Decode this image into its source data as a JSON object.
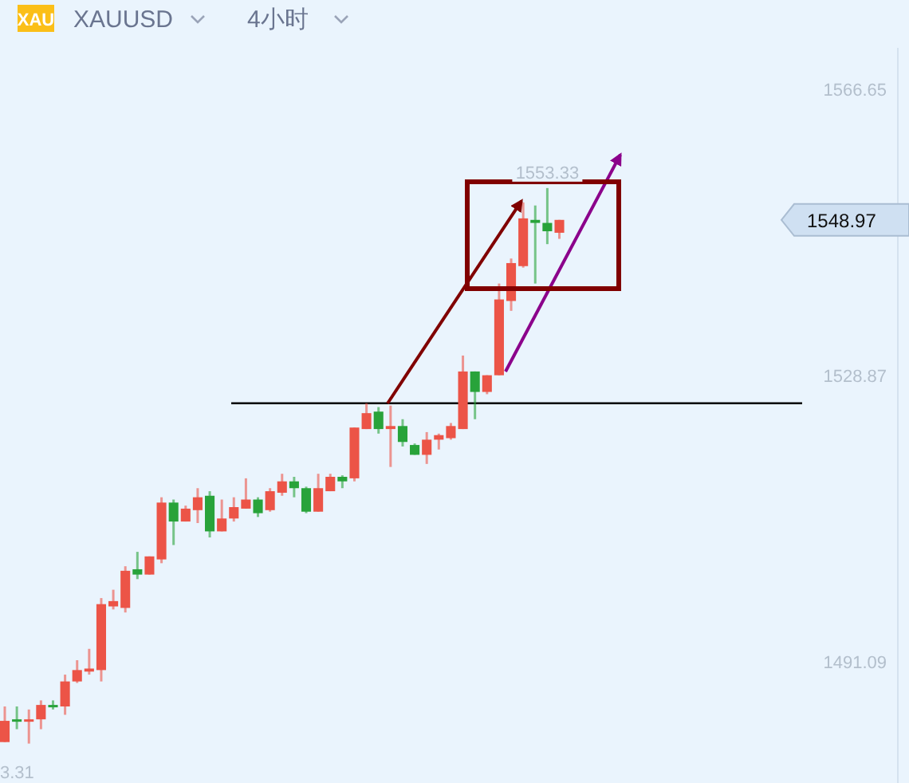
{
  "chart_data": {
    "type": "candlestick",
    "title": "XAUUSD",
    "subtitle": "4小时",
    "categories": [
      null,
      null,
      null,
      null,
      null,
      null,
      null,
      null,
      null,
      null,
      null,
      null,
      null,
      null,
      null,
      null,
      null,
      null,
      null,
      null,
      null,
      null,
      null,
      null,
      null,
      null,
      null,
      null,
      null,
      null,
      null,
      null,
      null,
      null,
      null,
      null,
      null,
      null,
      null,
      null,
      null,
      null,
      null,
      null,
      null,
      null,
      null,
      null,
      null,
      null,
      null,
      null,
      null,
      null,
      null,
      null,
      null,
      null,
      null,
      null,
      null,
      null,
      null,
      null,
      null,
      null,
      null,
      null,
      null,
      null,
      null,
      null,
      null,
      null,
      null
    ],
    "ohlc": [
      [
        1480.5,
        1485.2,
        1480.5,
        1483.3
      ],
      [
        1483.5,
        1485.2,
        1482.2,
        1483.3
      ],
      [
        1483.3,
        1484.8,
        1480.3,
        1483.5
      ],
      [
        1483.5,
        1486.0,
        1482.2,
        1485.4
      ],
      [
        1485.4,
        1486.0,
        1484.8,
        1485.2
      ],
      [
        1485.2,
        1489.4,
        1484.1,
        1488.5
      ],
      [
        1488.5,
        1491.3,
        1488.3,
        1490.0
      ],
      [
        1489.8,
        1492.8,
        1489.4,
        1490.2
      ],
      [
        1490.0,
        1499.5,
        1488.5,
        1498.7
      ],
      [
        1498.4,
        1500.6,
        1498.0,
        1499.1
      ],
      [
        1498.2,
        1503.7,
        1497.6,
        1503.1
      ],
      [
        1503.3,
        1505.6,
        1502.0,
        1502.6
      ],
      [
        1502.6,
        1505.0,
        1502.6,
        1505.0
      ],
      [
        1504.6,
        1512.8,
        1504.1,
        1512.1
      ],
      [
        1512.1,
        1512.5,
        1506.5,
        1509.6
      ],
      [
        1509.6,
        1511.7,
        1509.6,
        1511.3
      ],
      [
        1511.1,
        1514.0,
        1509.4,
        1512.8
      ],
      [
        1513.0,
        1513.6,
        1507.5,
        1508.3
      ],
      [
        1508.3,
        1512.5,
        1508.3,
        1510.0
      ],
      [
        1510.0,
        1512.8,
        1509.6,
        1511.5
      ],
      [
        1511.3,
        1515.3,
        1511.3,
        1512.5
      ],
      [
        1512.5,
        1512.8,
        1510.2,
        1510.7
      ],
      [
        1511.1,
        1514.0,
        1510.9,
        1513.6
      ],
      [
        1513.4,
        1515.9,
        1513.0,
        1514.9
      ],
      [
        1514.9,
        1515.5,
        1512.8,
        1514.0
      ],
      [
        1514.0,
        1514.2,
        1510.7,
        1510.9
      ],
      [
        1510.9,
        1515.9,
        1510.9,
        1514.0
      ],
      [
        1513.6,
        1515.9,
        1513.6,
        1515.5
      ],
      [
        1515.5,
        1515.7,
        1514.0,
        1514.9
      ],
      [
        1515.3,
        1522.0,
        1514.9,
        1522.0
      ],
      [
        1521.8,
        1525.2,
        1521.8,
        1523.9
      ],
      [
        1524.1,
        1524.7,
        1521.2,
        1521.8
      ],
      [
        1521.8,
        1524.9,
        1516.8,
        1522.2
      ],
      [
        1522.2,
        1523.1,
        1519.5,
        1520.1
      ],
      [
        1519.7,
        1519.9,
        1518.4,
        1518.4
      ],
      [
        1518.4,
        1521.4,
        1517.2,
        1520.4
      ],
      [
        1520.4,
        1521.2,
        1519.1,
        1521.0
      ],
      [
        1520.6,
        1522.6,
        1520.4,
        1522.2
      ],
      [
        1521.8,
        1531.5,
        1521.8,
        1529.4
      ],
      [
        1529.4,
        1529.4,
        1523.1,
        1526.7
      ],
      [
        1526.7,
        1528.9,
        1526.4,
        1528.9
      ],
      [
        1528.9,
        1541.0,
        1528.9,
        1538.9
      ],
      [
        1538.7,
        1544.3,
        1537.4,
        1543.7
      ],
      [
        1543.3,
        1551.7,
        1543.1,
        1549.6
      ],
      [
        1549.4,
        1551.3,
        1541.0,
        1549.0
      ],
      [
        1549.0,
        1553.6,
        1546.2,
        1547.9
      ],
      [
        1547.7,
        1549.4,
        1546.9,
        1549.4
      ],
      null,
      null,
      null,
      null,
      null,
      null,
      null,
      null,
      null,
      null,
      null,
      null,
      null,
      null,
      null,
      null,
      null,
      null,
      null,
      null,
      null,
      null,
      null,
      null,
      null,
      null,
      null,
      null
    ],
    "colors": [
      "#ec5447",
      "#28a33a",
      "#ec5447",
      "#ec5447",
      "#28a33a",
      "#ec5447",
      "#ec5447",
      "#ec5447",
      "#ec5447",
      "#ec5447",
      "#ec5447",
      "#28a33a",
      "#ec5447",
      "#ec5447",
      "#28a33a",
      "#ec5447",
      "#ec5447",
      "#28a33a",
      "#ec5447",
      "#ec5447",
      "#ec5447",
      "#28a33a",
      "#ec5447",
      "#ec5447",
      "#28a33a",
      "#28a33a",
      "#ec5447",
      "#ec5447",
      "#28a33a",
      "#ec5447",
      "#ec5447",
      "#28a33a",
      "#ec5447",
      "#28a33a",
      "#28a33a",
      "#ec5447",
      "#ec5447",
      "#ec5447",
      "#ec5447",
      "#28a33a",
      "#ec5447",
      "#ec5447",
      "#ec5447",
      "#ec5447",
      "#28a33a",
      "#28a33a",
      "#ec5447",
      null,
      null,
      null,
      null,
      null,
      null,
      null,
      null,
      null,
      null,
      null,
      null,
      null,
      null,
      null,
      null,
      null,
      null,
      null,
      null,
      null,
      null,
      null,
      null,
      null,
      null,
      null,
      null
    ],
    "ylim": [
      1475.1,
      1572.1
    ],
    "yticks": [
      1491.09,
      1528.87,
      1566.65
    ],
    "ref_lines": [
      {
        "axis": "y",
        "value": 1525.2,
        "color": "#000000"
      }
    ],
    "annotations": [
      "XAU",
      "3.31",
      "1553.33",
      "1548.97"
    ],
    "grid": false
  }
}
